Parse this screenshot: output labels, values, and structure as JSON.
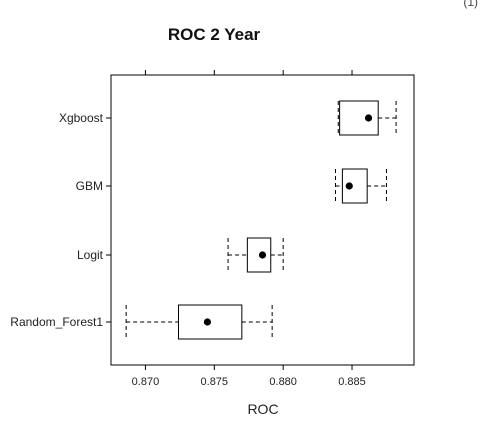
{
  "corner_mark": "(1)",
  "chart_data": {
    "type": "box",
    "title": "ROC 2 Year",
    "xlabel": "ROC",
    "ylabel": "",
    "xlim": [
      0.8675,
      0.8895
    ],
    "x_ticks": [
      0.87,
      0.875,
      0.88,
      0.885
    ],
    "x_tick_labels": [
      "0.870",
      "0.875",
      "0.880",
      "0.885"
    ],
    "grid": false,
    "orientation": "horizontal",
    "categories": [
      "Xgboost",
      "GBM",
      "Logit",
      "Random_Forest1"
    ],
    "boxes": [
      {
        "name": "Xgboost",
        "min": 0.884,
        "q1": 0.8841,
        "median": 0.8862,
        "q3": 0.8869,
        "max": 0.8882
      },
      {
        "name": "GBM",
        "min": 0.8838,
        "q1": 0.8843,
        "median": 0.8848,
        "q3": 0.8861,
        "max": 0.8875
      },
      {
        "name": "Logit",
        "min": 0.876,
        "q1": 0.8774,
        "median": 0.8785,
        "q3": 0.8791,
        "max": 0.88
      },
      {
        "name": "Random_Forest1",
        "min": 0.8686,
        "q1": 0.8724,
        "median": 0.8745,
        "q3": 0.877,
        "max": 0.8792
      }
    ]
  }
}
